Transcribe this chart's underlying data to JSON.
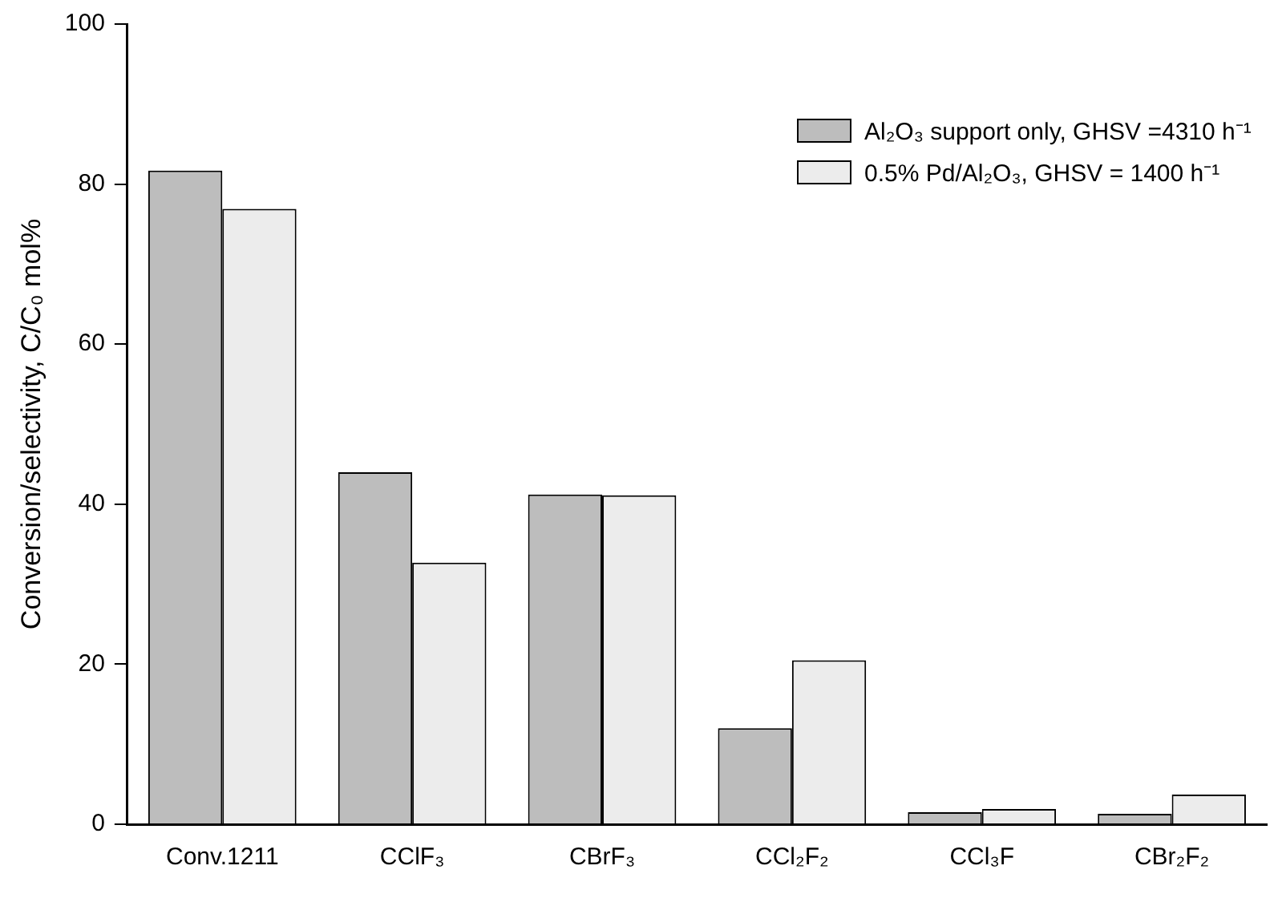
{
  "chart_data": {
    "type": "bar",
    "ylabel": "Conversion/selectivity, C/C₀ mol%",
    "categories": [
      "Conv.1211",
      "CClF₃",
      "CBrF₃",
      "CCl₂F₂",
      "CCl₃F",
      "CBr₂F₂"
    ],
    "series": [
      {
        "name": "Al₂O₃ support only, GHSV =4310 h⁻¹",
        "color": "#bdbdbd",
        "values": [
          81.7,
          44,
          41.2,
          12,
          1.5,
          1.3
        ]
      },
      {
        "name": "0.5% Pd/Al₂O₃, GHSV = 1400 h⁻¹",
        "color": "#ececec",
        "values": [
          76.9,
          32.7,
          41.1,
          20.5,
          1.9,
          3.7
        ]
      }
    ],
    "ylim": [
      0,
      100
    ],
    "yticks": [
      0,
      20,
      40,
      60,
      80,
      100
    ],
    "grid": false,
    "legend": "top right"
  }
}
